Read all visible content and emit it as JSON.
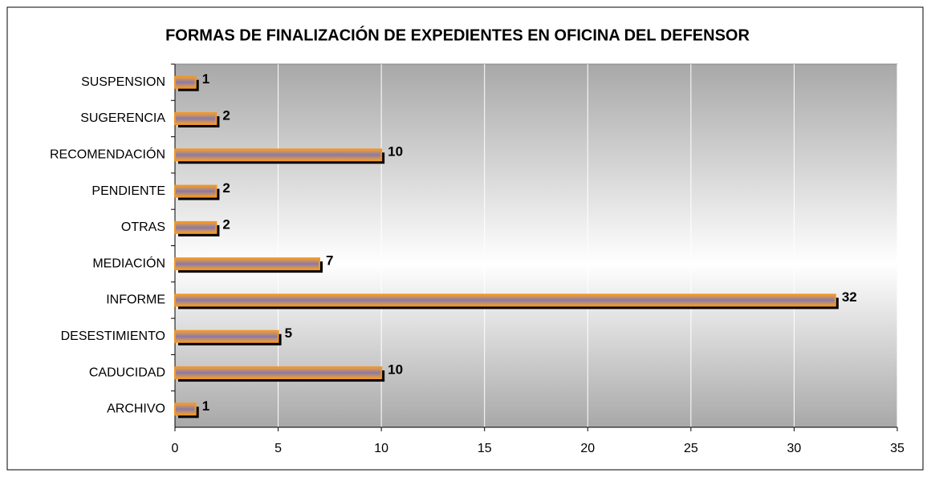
{
  "chart_data": {
    "type": "bar",
    "orientation": "horizontal",
    "title": "FORMAS DE FINALIZACIÓN DE EXPEDIENTES EN OFICINA DEL DEFENSOR",
    "categories": [
      "SUSPENSION",
      "SUGERENCIA",
      "RECOMENDACIÓN",
      "PENDIENTE",
      "OTRAS",
      "MEDIACIÓN",
      "INFORME",
      "DESESTIMIENTO",
      "CADUCIDAD",
      "ARCHIVO"
    ],
    "values": [
      1,
      2,
      10,
      2,
      2,
      7,
      32,
      5,
      10,
      1
    ],
    "color": "#f0962a",
    "xlim": [
      0,
      35
    ],
    "xticks": [
      0,
      5,
      10,
      15,
      20,
      25,
      30,
      35
    ],
    "grid": true
  }
}
